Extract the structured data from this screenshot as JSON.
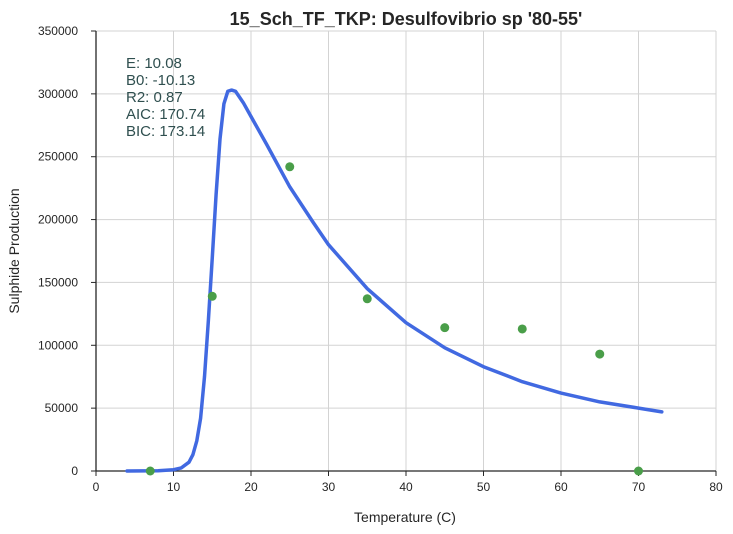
{
  "chart_data": {
    "type": "scatter",
    "title": "15_Sch_TF_TKP: Desulfovibrio sp '80-55'",
    "xlabel": "Temperature (C)",
    "ylabel": "Sulphide Production",
    "xlim": [
      0,
      80
    ],
    "ylim": [
      0,
      350000
    ],
    "x_ticks": [
      "0",
      "10",
      "20",
      "30",
      "40",
      "50",
      "60",
      "70",
      "80"
    ],
    "y_ticks": [
      "0",
      "50000",
      "100000",
      "150000",
      "200000",
      "250000",
      "300000",
      "350000"
    ],
    "grid": true,
    "series": [
      {
        "kind": "scatter",
        "color": "#4a9e49",
        "x": [
          7,
          15,
          25,
          35,
          45,
          55,
          65,
          70
        ],
        "y": [
          0,
          139000,
          242000,
          137000,
          114000,
          113000,
          93000,
          0
        ]
      },
      {
        "kind": "line",
        "color": "#4169e1",
        "x": [
          4,
          8,
          10,
          11,
          12,
          12.5,
          13,
          13.5,
          14,
          14.5,
          15,
          15.5,
          16,
          16.5,
          17,
          17.5,
          18,
          19,
          20,
          22,
          25,
          28,
          30,
          35,
          40,
          45,
          50,
          55,
          60,
          65,
          70,
          73
        ],
        "y": [
          0,
          200,
          1000,
          2500,
          7000,
          13000,
          24000,
          42000,
          75000,
          120000,
          170000,
          220000,
          264000,
          292000,
          302000,
          303000,
          302000,
          293000,
          282000,
          260000,
          226000,
          198000,
          180000,
          145000,
          118000,
          98000,
          83000,
          71000,
          62000,
          55000,
          50000,
          47000
        ]
      }
    ],
    "annotations": [
      "E:  10.08",
      "B0:  -10.13",
      "R2:  0.87",
      "AIC: 170.74",
      "BIC: 173.14"
    ],
    "annotation_color": "#2f4f4f"
  }
}
